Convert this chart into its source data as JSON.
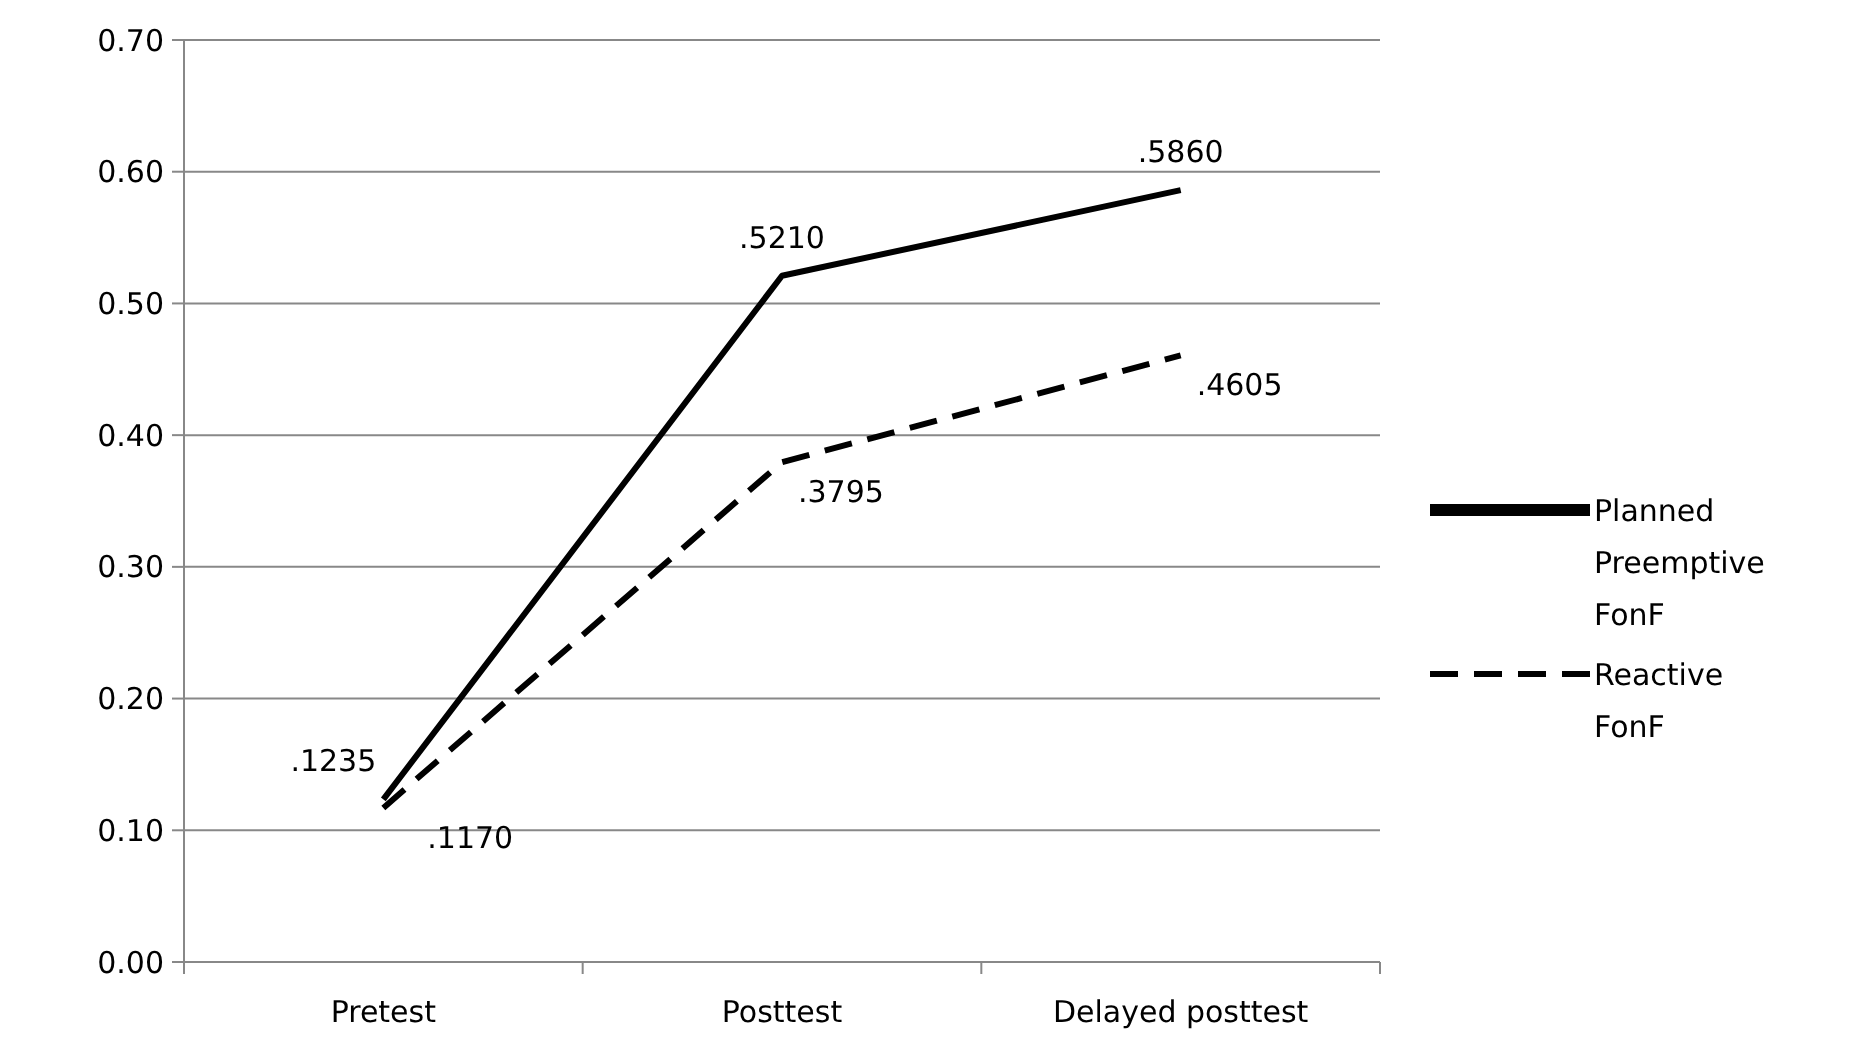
{
  "chart_data": {
    "type": "line",
    "categories": [
      "Pretest",
      "Posttest",
      "Delayed posttest"
    ],
    "series": [
      {
        "name": "Planned Preemptive FonF",
        "color": "#000000",
        "line_style": "solid",
        "values": [
          0.1235,
          0.521,
          0.586
        ],
        "value_labels": [
          ".1235",
          ".5210",
          ".5860"
        ]
      },
      {
        "name": "Reactive FonF",
        "color": "#000000",
        "line_style": "dashed",
        "values": [
          0.117,
          0.3795,
          0.4605
        ],
        "value_labels": [
          ".1170",
          ".3795",
          ".4605"
        ]
      }
    ],
    "ylim": [
      0,
      0.7
    ],
    "yticks": [
      {
        "value": 0,
        "label": "0.00"
      },
      {
        "value": 0.1,
        "label": "0.10"
      },
      {
        "value": 0.2,
        "label": "0.20"
      },
      {
        "value": 0.3,
        "label": "0.30"
      },
      {
        "value": 0.4,
        "label": "0.40"
      },
      {
        "value": 0.5,
        "label": "0.50"
      },
      {
        "value": 0.6,
        "label": "0.60"
      },
      {
        "value": 0.7,
        "label": "0.70"
      }
    ],
    "grid": "y",
    "legend": "right",
    "marker": "none"
  }
}
